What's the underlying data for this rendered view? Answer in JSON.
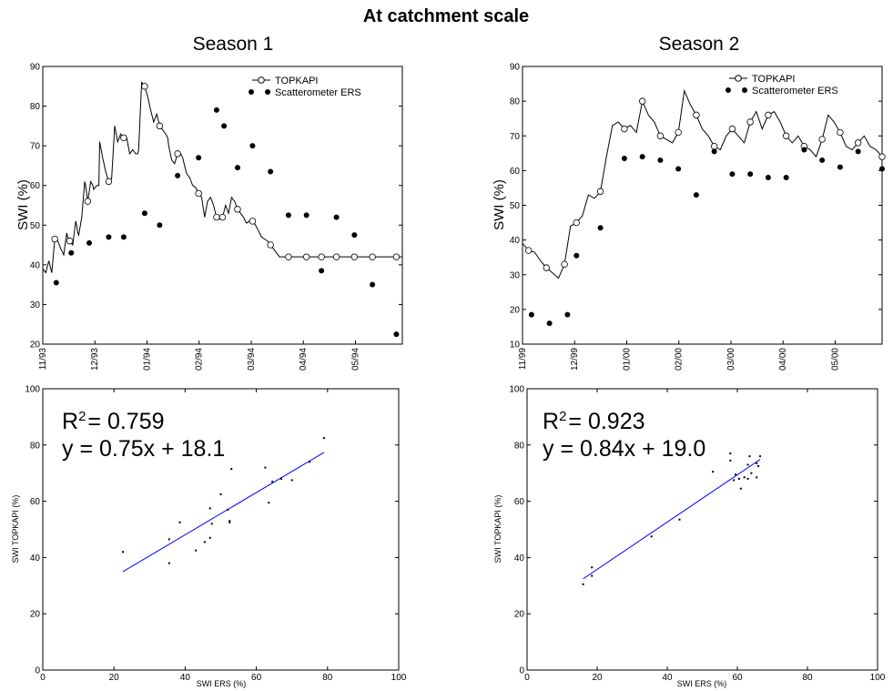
{
  "figure": {
    "title": "At catchment scale"
  },
  "chart_data": [
    {
      "type": "line",
      "title": "Season 1",
      "ylabel": "SWI (%)",
      "ylim": [
        20,
        90
      ],
      "yticks": [
        20,
        30,
        40,
        50,
        60,
        70,
        80,
        90
      ],
      "x_ticks": [
        "11/93",
        "12/93",
        "01/94",
        "02/94",
        "03/94",
        "04/94",
        "05/94"
      ],
      "legend": {
        "position": "top-right",
        "entries": [
          "TOPKAPI",
          "Scatterometer ERS"
        ]
      },
      "series": [
        {
          "name": "TOPKAPI",
          "style": "line-open-markers",
          "x": [
            0,
            1,
            2,
            3,
            4,
            5,
            6,
            6.7,
            7,
            8,
            8.3,
            9,
            10,
            11,
            11.3,
            11.7,
            12,
            13,
            14,
            14.3,
            15,
            16,
            16.7,
            17,
            18,
            18.7,
            19,
            20,
            21,
            22,
            22.7,
            23,
            24,
            25,
            26,
            27,
            27.7,
            28,
            29,
            30,
            31,
            31.7,
            32,
            33,
            34,
            35,
            36,
            37,
            38,
            38.7,
            39,
            40,
            41,
            41.7,
            42,
            43,
            44,
            45,
            46,
            46.7,
            47,
            48,
            49,
            50,
            51,
            52,
            52.7,
            53,
            54,
            55,
            56,
            57,
            58,
            59,
            60,
            61,
            62,
            63,
            64,
            65,
            66,
            67,
            68,
            69,
            70,
            71,
            72,
            73,
            74,
            75,
            76,
            77,
            78,
            79,
            80,
            81,
            82,
            83,
            84,
            85,
            86,
            87,
            88,
            89,
            90,
            91,
            92,
            93,
            94,
            95,
            96,
            97,
            98,
            99,
            100,
            101,
            102,
            103,
            104,
            105,
            106,
            107,
            108,
            109,
            110,
            111,
            112,
            113,
            114,
            115,
            116,
            117,
            118,
            119,
            120
          ],
          "y": [
            39,
            38,
            41,
            38,
            46.5,
            46,
            44,
            43,
            42.5,
            48,
            47,
            46,
            45,
            51,
            50,
            48,
            47.5,
            52,
            61,
            60,
            56,
            61,
            60,
            59,
            60,
            60,
            71,
            67,
            63.5,
            61,
            61,
            62,
            75,
            71,
            73,
            72,
            72.5,
            72,
            68,
            69,
            68,
            68,
            69,
            86,
            85,
            82.5,
            79,
            76,
            78,
            76,
            75,
            74,
            73,
            72,
            70,
            66.5,
            65.5,
            68,
            68,
            67,
            66,
            63,
            62,
            60,
            59.5,
            58,
            57.5,
            57,
            52,
            56,
            57,
            55,
            52,
            51.5,
            52,
            55,
            53,
            57,
            56,
            54,
            53,
            52,
            50.5,
            51,
            51,
            50,
            48.5,
            47,
            46.5,
            46,
            45,
            44,
            43,
            42,
            42,
            42,
            42,
            42,
            42,
            42,
            42,
            42,
            42,
            42,
            42,
            42,
            42,
            42,
            42,
            42,
            42,
            42,
            42,
            42,
            42,
            42,
            42,
            42,
            42,
            42,
            42,
            42,
            42,
            42,
            42,
            42,
            42,
            42,
            42,
            42,
            42,
            42,
            42,
            42,
            42
          ]
        },
        {
          "name": "Scatterometer ERS",
          "style": "filled-markers",
          "x": [
            4.5,
            9.5,
            15.5,
            22,
            27,
            34,
            39,
            45,
            52,
            58,
            60.5,
            65,
            70,
            76,
            82,
            88,
            93,
            98,
            104,
            110,
            118
          ],
          "y": [
            35.5,
            43,
            45.5,
            47,
            47,
            53,
            50,
            62.5,
            67,
            79,
            75,
            64.5,
            70,
            63.5,
            52.5,
            52.5,
            38.5,
            52,
            47.5,
            35,
            22.5
          ]
        }
      ],
      "x_span": [
        0,
        120
      ]
    },
    {
      "type": "line",
      "title": "Season 2",
      "ylabel": "SWI (%)",
      "ylim": [
        10,
        90
      ],
      "yticks": [
        10,
        20,
        30,
        40,
        50,
        60,
        70,
        80,
        90
      ],
      "x_ticks": [
        "11/99",
        "12/99",
        "01/00",
        "02/00",
        "03/00",
        "04/00",
        "05/00"
      ],
      "legend": {
        "position": "top-right",
        "entries": [
          "TOPKAPI",
          "Scatterometer ERS"
        ]
      },
      "series": [
        {
          "name": "TOPKAPI",
          "style": "line-open-markers",
          "x": [
            0,
            2,
            4,
            6,
            8,
            10,
            12,
            14,
            16,
            18,
            20,
            22,
            24,
            26,
            28,
            30,
            32,
            34,
            36,
            38,
            40,
            42,
            44,
            46,
            48,
            50,
            52,
            54,
            56,
            58,
            60,
            62,
            64,
            66,
            68,
            70,
            72,
            74,
            76,
            78,
            80,
            82,
            84,
            86,
            88,
            90,
            92,
            94,
            96,
            98,
            100,
            102,
            104,
            106,
            108,
            110,
            112,
            114,
            116,
            118,
            120
          ],
          "y": [
            39,
            37,
            36.5,
            34,
            32,
            30.5,
            29,
            33,
            44,
            45,
            47,
            53,
            52,
            54,
            64,
            73,
            74,
            72,
            73,
            71,
            80,
            76,
            74,
            70,
            69,
            68,
            71,
            83,
            79,
            76,
            72,
            70,
            67,
            66,
            70,
            72,
            70,
            68,
            74,
            77,
            72,
            76,
            77,
            74,
            70,
            68,
            70,
            67,
            66,
            64,
            69,
            76,
            74,
            71,
            67,
            66,
            68,
            70,
            67,
            66,
            64
          ]
        },
        {
          "name": "Scatterometer ERS",
          "style": "filled-markers",
          "x": [
            3,
            9,
            15,
            18,
            26,
            34,
            40,
            46,
            52,
            58,
            64,
            70,
            76,
            82,
            88,
            94,
            100,
            106,
            112,
            120
          ],
          "y": [
            18.5,
            16,
            18.5,
            35.5,
            43.5,
            63.5,
            64,
            63,
            60.5,
            53,
            65.5,
            59,
            59,
            58,
            58,
            66,
            63,
            61,
            65.5,
            60.5
          ]
        }
      ],
      "x_span": [
        0,
        120
      ]
    },
    {
      "type": "scatter",
      "xlabel": "SWI ERS (%)",
      "ylabel": "SWI TOPKAPI (%)",
      "xlim": [
        0,
        100
      ],
      "ylim": [
        0,
        100
      ],
      "xticks": [
        0,
        20,
        40,
        60,
        80,
        100
      ],
      "yticks": [
        0,
        20,
        40,
        60,
        80,
        100
      ],
      "annotation": {
        "r2_prefix": "R",
        "r2_sup": "2",
        "r2_value": "= 0.759",
        "equation": "y = 0.75x + 18.1"
      },
      "fit": {
        "slope": 0.75,
        "intercept": 18.1,
        "x_range": [
          22.5,
          79
        ]
      },
      "series": [
        {
          "name": "points",
          "x": [
            22.5,
            35.5,
            35.5,
            38.5,
            43,
            45.5,
            47,
            47,
            47.5,
            50,
            52,
            52.5,
            52.5,
            53,
            62.5,
            63.5,
            64.5,
            67,
            70,
            75,
            79
          ],
          "y": [
            42,
            46.5,
            38,
            52.5,
            42.5,
            45.5,
            47,
            57.5,
            52,
            62.5,
            57,
            53,
            52.5,
            71.5,
            72,
            59.5,
            67,
            68,
            67.5,
            74,
            82.5
          ]
        }
      ]
    },
    {
      "type": "scatter",
      "xlabel": "SWI ERS (%)",
      "ylabel": "SWI TOPKAPI (%)",
      "xlim": [
        0,
        100
      ],
      "ylim": [
        0,
        100
      ],
      "xticks": [
        0,
        20,
        40,
        60,
        80,
        100
      ],
      "yticks": [
        0,
        20,
        40,
        60,
        80,
        100
      ],
      "annotation": {
        "r2_prefix": "R",
        "r2_sup": "2",
        "r2_value": "= 0.923",
        "equation": "y = 0.84x + 19.0"
      },
      "fit": {
        "slope": 0.84,
        "intercept": 19.0,
        "x_range": [
          16,
          66.5
        ]
      },
      "series": [
        {
          "name": "points",
          "x": [
            16,
            18.5,
            18.5,
            35.5,
            43.5,
            53,
            58,
            58,
            59,
            59.5,
            60.5,
            61,
            62,
            63,
            63,
            63.5,
            64,
            65.5,
            65.5,
            66,
            66.5
          ],
          "y": [
            30.5,
            36.5,
            33.5,
            47.5,
            53.5,
            70.5,
            77,
            74.5,
            67.5,
            69.5,
            68,
            64.5,
            68.5,
            68,
            73,
            76,
            70,
            73.5,
            68.5,
            72.5,
            76
          ]
        }
      ]
    }
  ]
}
